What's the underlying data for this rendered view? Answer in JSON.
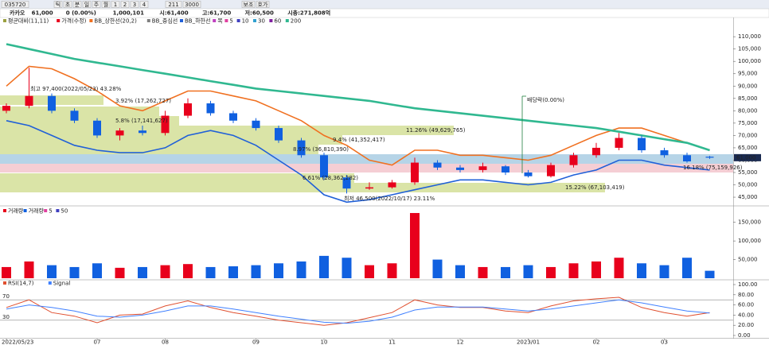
{
  "toolbar": {
    "code": "035720",
    "buttons": [
      "틱",
      "초",
      "분",
      "일",
      "주",
      "월",
      "1",
      "2",
      "3",
      "4"
    ],
    "count": "211",
    "max": "3000",
    "extra": [
      "보조",
      "호가"
    ]
  },
  "info": {
    "name": "카카오",
    "price": "61,000",
    "change": "0 (0.00%)",
    "volume": "1,000,101",
    "open": "시:61,400",
    "high": "고:61,700",
    "low": "저:60,500",
    "cap": "시총:271,808억"
  },
  "chart_data": [
    {
      "type": "candlestick",
      "categories": [
        "2022/05/23",
        null,
        null,
        null,
        "07",
        null,
        null,
        "08",
        null,
        null,
        null,
        "09",
        null,
        null,
        "10",
        null,
        null,
        "11",
        null,
        null,
        "12",
        null,
        null,
        "2023/01",
        null,
        null,
        "02",
        null,
        null,
        "03",
        null,
        null
      ],
      "open": [
        80000,
        82000,
        86000,
        80000,
        76000,
        70000,
        72000,
        71000,
        78000,
        83000,
        79000,
        76000,
        73000,
        68000,
        62000,
        53000,
        48500,
        49000,
        51000,
        59000,
        57000,
        56000,
        57500,
        55000,
        53500,
        58000,
        62000,
        65000,
        69000,
        64000,
        62000,
        61400
      ],
      "high": [
        83000,
        97400,
        87000,
        81000,
        77000,
        73000,
        74000,
        80000,
        85000,
        84000,
        80000,
        77000,
        74000,
        69000,
        63000,
        54000,
        51000,
        52000,
        61000,
        60000,
        58000,
        59000,
        58000,
        56000,
        59000,
        63000,
        67000,
        71000,
        70000,
        65000,
        63000,
        61700
      ],
      "low": [
        79000,
        81000,
        79000,
        75000,
        69000,
        68000,
        70000,
        70000,
        77000,
        78000,
        75000,
        72000,
        67000,
        61000,
        52000,
        46500,
        48000,
        48500,
        50000,
        56000,
        55000,
        55000,
        54000,
        53000,
        53000,
        57000,
        61000,
        64000,
        63000,
        61000,
        59000,
        60500
      ],
      "close": [
        82000,
        86000,
        80000,
        76000,
        70000,
        72000,
        71000,
        78000,
        83000,
        79000,
        76000,
        73000,
        68000,
        62000,
        53000,
        48500,
        49000,
        51000,
        59000,
        57000,
        56000,
        57500,
        55000,
        53500,
        58000,
        62000,
        65000,
        69000,
        64000,
        62000,
        59500,
        61000
      ],
      "last_close_label": "61,000",
      "series": [
        {
          "name": "평균대비(11,11)",
          "color": "#9aa040"
        },
        {
          "name": "가격(수정)",
          "color": "#e8001c"
        },
        {
          "name": "BB_상한선(20,2)",
          "color": "#f07020",
          "values": [
            90000,
            98000,
            97000,
            93000,
            88000,
            82000,
            80000,
            84000,
            88000,
            88000,
            86000,
            84000,
            80000,
            76000,
            70000,
            66000,
            60000,
            58000,
            64000,
            64000,
            62000,
            62000,
            61000,
            60000,
            62000,
            66000,
            70000,
            73000,
            73000,
            70000,
            67000,
            64000
          ]
        },
        {
          "name": "BB_중심선",
          "color": "#808080"
        },
        {
          "name": "BB_하한선",
          "color": "#2060d8",
          "values": [
            76000,
            74000,
            70000,
            66000,
            64000,
            63000,
            63000,
            65000,
            70000,
            72000,
            70000,
            66000,
            60000,
            54000,
            46000,
            43000,
            44000,
            46000,
            48000,
            50000,
            52000,
            52000,
            51000,
            50000,
            51000,
            54000,
            56000,
            60000,
            60000,
            58000,
            57000,
            56000
          ]
        },
        {
          "name": "목",
          "color": "#c040c0"
        },
        {
          "name": "5",
          "color": "#e040a0"
        },
        {
          "name": "10",
          "color": "#4040c0"
        },
        {
          "name": "30",
          "color": "#30a0d0"
        },
        {
          "name": "60",
          "color": "#8020a0"
        },
        {
          "name": "200",
          "color": "#30b890",
          "values": [
            107000,
            105000,
            103000,
            101000,
            99500,
            98000,
            96500,
            95000,
            93500,
            92000,
            90500,
            89000,
            88000,
            87000,
            86000,
            85000,
            84000,
            82500,
            81000,
            80000,
            79000,
            78000,
            77000,
            76000,
            75000,
            74000,
            73000,
            71500,
            70000,
            68500,
            67000,
            64000
          ]
        }
      ],
      "ylim": [
        41800,
        115200
      ],
      "yticks": [
        {
          "value": 45000,
          "label": "45,000"
        },
        {
          "value": 50000,
          "label": "50,000"
        },
        {
          "value": 55000,
          "label": "55,000"
        },
        {
          "value": 60000,
          "label": "60,000"
        },
        {
          "value": 65000,
          "label": "65,000"
        },
        {
          "value": 70000,
          "label": "70,000"
        },
        {
          "value": 75000,
          "label": "75,000"
        },
        {
          "value": 80000,
          "label": "80,000"
        },
        {
          "value": 85000,
          "label": "85,000"
        },
        {
          "value": 90000,
          "label": "90,000"
        },
        {
          "value": 95000,
          "label": "95,000"
        },
        {
          "value": 100000,
          "label": "100,000"
        },
        {
          "value": 105000,
          "label": "105,000"
        },
        {
          "value": 110000,
          "label": "110,000"
        }
      ],
      "annotations": [
        "최고 97,400(2022/05/23) 43.28%",
        "3.92% (17,262,727)",
        "5.8% (17,141,627)",
        "11.26% (49,629,765)",
        "9.4% (41,352,417)",
        "8.97% (36,810,390)",
        "6.61% (28,362,282)",
        "15.22% (67,103,419)",
        "16.18% (75,159,926)",
        "최저 46,500(2022/10/17) 23.11%",
        "배당락(0.00%)"
      ]
    },
    {
      "type": "bar",
      "series": [
        {
          "name": "거래량",
          "color": "#e8001c",
          "values": [
            30000,
            45000,
            35000,
            30000,
            40000,
            28000,
            30000,
            35000,
            38000,
            30000,
            32000,
            35000,
            40000,
            45000,
            60000,
            55000,
            35000,
            40000,
            175000,
            50000,
            35000,
            30000,
            30000,
            35000,
            30000,
            40000,
            45000,
            55000,
            40000,
            35000,
            55000,
            20000
          ]
        },
        {
          "name": "거래량",
          "color": "#1060e0"
        },
        {
          "name": "5",
          "color": "#e040a0"
        },
        {
          "name": "50",
          "color": "#4040c0"
        }
      ],
      "ylim": [
        0,
        192000
      ],
      "yticks": [
        {
          "value": 50000,
          "label": "50,000"
        },
        {
          "value": 100000,
          "label": "100,000"
        },
        {
          "value": 150000,
          "label": "150,000"
        }
      ]
    },
    {
      "type": "line",
      "series": [
        {
          "name": "RSI(14,7)",
          "color": "#e05030",
          "values": [
            55,
            70,
            45,
            38,
            25,
            40,
            42,
            58,
            68,
            55,
            45,
            38,
            30,
            25,
            20,
            25,
            35,
            45,
            70,
            60,
            55,
            55,
            48,
            45,
            58,
            68,
            72,
            75,
            55,
            45,
            38,
            45
          ]
        },
        {
          "name": "Signal",
          "color": "#4080ff",
          "values": [
            52,
            60,
            55,
            48,
            38,
            36,
            40,
            48,
            58,
            58,
            52,
            45,
            38,
            32,
            26,
            24,
            28,
            36,
            50,
            56,
            56,
            56,
            52,
            48,
            52,
            58,
            64,
            70,
            64,
            56,
            48,
            44
          ]
        }
      ],
      "levels": [
        70,
        30
      ],
      "ylim": [
        0,
        100
      ],
      "yticks": [
        {
          "value": 0,
          "label": "0.00"
        },
        {
          "value": 20,
          "label": "20.00"
        },
        {
          "value": 40,
          "label": "40.00"
        },
        {
          "value": 60,
          "label": "60.00"
        },
        {
          "value": 80,
          "label": "80.00"
        },
        {
          "value": 100,
          "label": "100.00"
        }
      ]
    }
  ]
}
